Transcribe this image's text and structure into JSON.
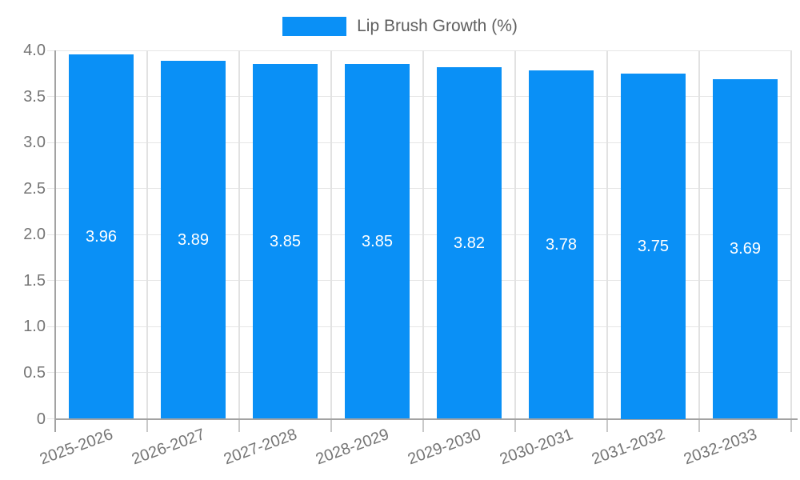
{
  "legend": {
    "label": "Lip Brush Growth (%)"
  },
  "chart_data": {
    "type": "bar",
    "title": "",
    "xlabel": "",
    "ylabel": "",
    "legend_position": "top",
    "series_name": "Lip Brush Growth (%)",
    "categories": [
      "2025-2026",
      "2026-2027",
      "2027-2028",
      "2028-2029",
      "2029-2030",
      "2030-2031",
      "2031-2032",
      "2032-2033"
    ],
    "values": [
      3.96,
      3.89,
      3.85,
      3.85,
      3.82,
      3.78,
      3.75,
      3.69
    ],
    "value_labels": [
      "3.96",
      "3.89",
      "3.85",
      "3.85",
      "3.82",
      "3.78",
      "3.75",
      "3.69"
    ],
    "ylim": [
      0,
      4
    ],
    "y_ticks": [
      0,
      0.5,
      1,
      1.5,
      2,
      2.5,
      3,
      3.5,
      4
    ],
    "y_tick_labels": [
      "0",
      "0.5",
      "1.0",
      "1.5",
      "2.0",
      "2.5",
      "3.0",
      "3.5",
      "4.0"
    ],
    "grid": "both",
    "colors": {
      "bar": "#0a90f6",
      "grid_h": "#e6e6e6",
      "grid_v": "#e2e2e2",
      "axis": "#a3a3a3",
      "tick": "#c9c9c9",
      "tick_label": "#757575",
      "legend_text": "#5f5f5f",
      "value_label": "#ffffff",
      "background": "#ffffff"
    }
  }
}
